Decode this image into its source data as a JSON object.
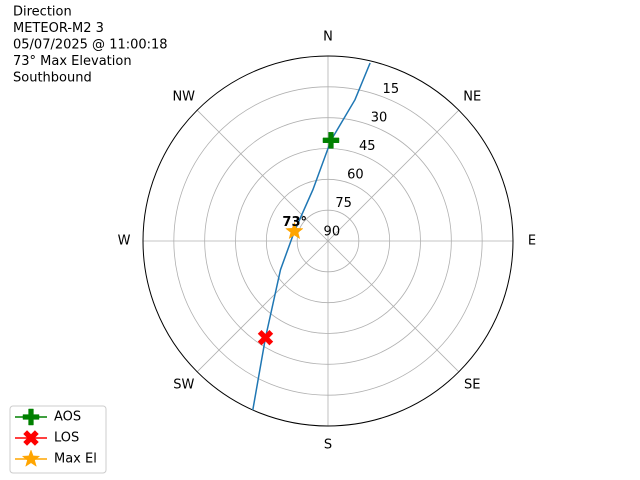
{
  "chart_data": {
    "type": "polar",
    "title_lines": [
      "Direction",
      "METEOR-M2 3",
      "05/07/2025 @ 11:00:18",
      "73° Max Elevation",
      "Southbound"
    ],
    "theta_zero": "N",
    "theta_direction": "clockwise",
    "xticks": [
      {
        "value": 0,
        "label": "N"
      },
      {
        "value": 45,
        "label": "NE"
      },
      {
        "value": 90,
        "label": "E"
      },
      {
        "value": 135,
        "label": "SE"
      },
      {
        "value": 180,
        "label": "S"
      },
      {
        "value": 225,
        "label": "SW"
      },
      {
        "value": 270,
        "label": "W"
      },
      {
        "value": 315,
        "label": "NW"
      }
    ],
    "ylim": [
      90,
      0
    ],
    "yticks": [
      15,
      30,
      45,
      60,
      75,
      90
    ],
    "grid": true,
    "track": {
      "color": "#1f77b4",
      "x": [
        13.3,
        10.8,
        1.7,
        343.6,
        286,
        238.9,
        212.9,
        204
      ],
      "y": [
        1,
        20,
        41,
        64,
        73,
        63,
        34,
        0
      ]
    },
    "series": [
      {
        "name": "AOS",
        "color": "#008000",
        "marker": "plus",
        "x": [
          1.7
        ],
        "y": [
          41
        ]
      },
      {
        "name": "LOS",
        "color": "#ff0000",
        "marker": "x",
        "x": [
          212.9
        ],
        "y": [
          34
        ]
      },
      {
        "name": "Max El",
        "color": "#ffa500",
        "marker": "star",
        "x": [
          286
        ],
        "y": [
          73
        ],
        "value_labels": [
          "73°"
        ]
      }
    ],
    "legend": "lower left"
  }
}
